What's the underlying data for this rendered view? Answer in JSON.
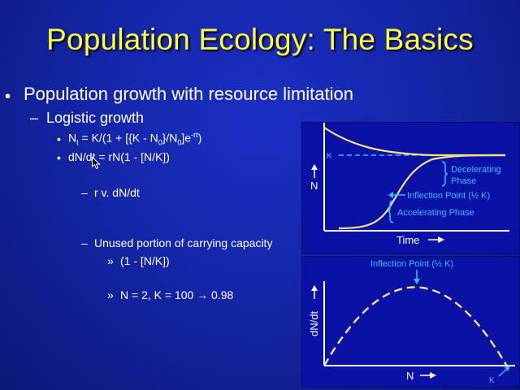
{
  "slide": {
    "title": "Population Ecology: The Basics",
    "bullet1": "Population growth with resource limitation",
    "dash1": "Logistic growth",
    "eq1": {
      "a": "N",
      "a_sub": "t",
      "b": " = K/(1 + [{K - N",
      "b_sub": "0",
      "c": "}/N",
      "c_sub": "0",
      "d": "]e",
      "d_sup": "-rt",
      "e": ")"
    },
    "eq2": "dN/dt = rN(1 - [N/K])",
    "dash2": "r v. dN/dt",
    "dash3": "Unused portion of carrying capacity",
    "sub1": "(1 - [N/K])",
    "sub2": "N = 2, K = 100 → 0.98",
    "bullet_char": "•",
    "dash_char": "–",
    "chev_char": "»"
  },
  "colors": {
    "title": "#ffff33",
    "panel_bg": "#0a12a6",
    "curve": "#f6e27a",
    "annotation": "#33bbff"
  },
  "chart_data": [
    {
      "type": "line",
      "xlabel": "Time",
      "ylabel": "N",
      "annotations": [
        "K",
        "Decelerating Phase",
        "Inflection Point (½ K)",
        "Accelerating Phase"
      ],
      "annotation_lines": {
        "decel1": "Decelerating",
        "decel2": "Phase"
      },
      "series": [
        {
          "values": "logistic growth from near 0 rising to K"
        },
        {
          "values": "decline from above K down to K"
        }
      ]
    },
    {
      "type": "line",
      "xlabel": "N",
      "ylabel": "dN/dt",
      "annotations": [
        "Inflection Point (½ K)",
        "K"
      ],
      "series": [
        {
          "values": "parabola: zero at N=0, peak at N=K/2, zero at N=K"
        }
      ]
    }
  ]
}
